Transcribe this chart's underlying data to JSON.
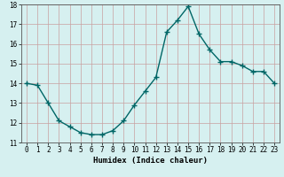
{
  "title": "",
  "xlabel": "Humidex (Indice chaleur)",
  "ylabel": "",
  "x_values": [
    0,
    1,
    2,
    3,
    4,
    5,
    6,
    7,
    8,
    9,
    10,
    11,
    12,
    13,
    14,
    15,
    16,
    17,
    18,
    19,
    20,
    21,
    22,
    23
  ],
  "y_values": [
    14.0,
    13.9,
    13.0,
    12.1,
    11.8,
    11.5,
    11.4,
    11.4,
    11.6,
    12.1,
    12.9,
    13.6,
    14.3,
    16.6,
    17.2,
    17.9,
    16.5,
    15.7,
    15.1,
    15.1,
    14.9,
    14.6,
    14.6,
    14.0
  ],
  "line_color": "#006666",
  "marker": "+",
  "marker_size": 4,
  "bg_color": "#d6f0f0",
  "grid_color": "#c8dada",
  "ylim": [
    11,
    18
  ],
  "xlim": [
    -0.5,
    23.5
  ],
  "yticks": [
    11,
    12,
    13,
    14,
    15,
    16,
    17,
    18
  ],
  "xticks": [
    0,
    1,
    2,
    3,
    4,
    5,
    6,
    7,
    8,
    9,
    10,
    11,
    12,
    13,
    14,
    15,
    16,
    17,
    18,
    19,
    20,
    21,
    22,
    23
  ],
  "xlabel_fontsize": 6.5,
  "tick_fontsize": 5.5,
  "line_width": 1.0
}
